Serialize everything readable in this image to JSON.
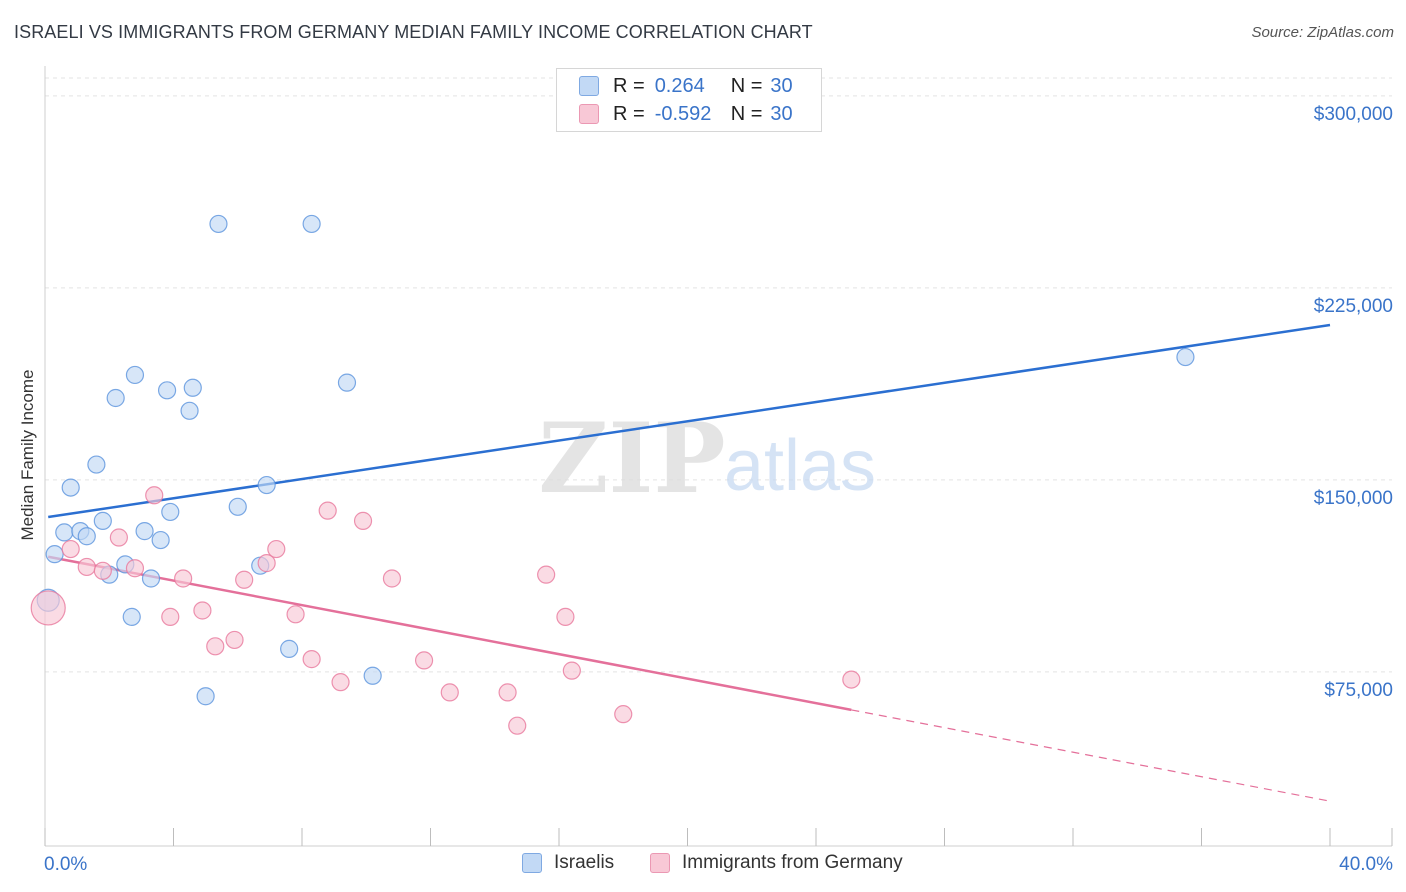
{
  "header": {
    "title": "ISRAELI VS IMMIGRANTS FROM GERMANY MEDIAN FAMILY INCOME CORRELATION CHART",
    "source": "Source: ZipAtlas.com"
  },
  "watermark": {
    "zip": "ZIP",
    "atlas": "atlas"
  },
  "legend": {
    "rows": [
      {
        "r_label": "R =",
        "r_value": "0.264",
        "n_label": "N =",
        "n_value": "30",
        "color": "#a8c8f0"
      },
      {
        "r_label": "R =",
        "r_value": "-0.592",
        "n_label": "N =",
        "n_value": "30",
        "color": "#f6b8cb"
      }
    ]
  },
  "bottom_legend": [
    {
      "label": "Israelis",
      "color": "#a8c8f0"
    },
    {
      "label": "Immigrants from Germany",
      "color": "#f6b8cb"
    }
  ],
  "chart_data": {
    "type": "scatter",
    "title": "ISRAELI VS IMMIGRANTS FROM GERMANY MEDIAN FAMILY INCOME CORRELATION CHART",
    "xlabel": "",
    "ylabel": "Median Family Income",
    "xlim": [
      0,
      40
    ],
    "ylim": [
      7000,
      307000
    ],
    "x_tick_labels": [
      "0.0%",
      "40.0%"
    ],
    "y_ticks": [
      75000,
      150000,
      225000,
      300000
    ],
    "y_tick_labels": [
      "$75,000",
      "$150,000",
      "$225,000",
      "$300,000"
    ],
    "grid": true,
    "series": [
      {
        "name": "Israelis",
        "color": "#5b93dd",
        "fill": "#c2d9f5",
        "points": [
          [
            0.1,
            103000
          ],
          [
            0.3,
            121000
          ],
          [
            0.6,
            129500
          ],
          [
            0.8,
            147000
          ],
          [
            1.1,
            130000
          ],
          [
            1.3,
            128000
          ],
          [
            1.6,
            156000
          ],
          [
            1.8,
            134000
          ],
          [
            2.0,
            113000
          ],
          [
            2.2,
            182000
          ],
          [
            2.5,
            117000
          ],
          [
            2.7,
            96500
          ],
          [
            2.8,
            191000
          ],
          [
            3.1,
            130000
          ],
          [
            3.3,
            111500
          ],
          [
            3.6,
            126500
          ],
          [
            3.8,
            185000
          ],
          [
            3.9,
            137500
          ],
          [
            4.5,
            177000
          ],
          [
            4.6,
            186000
          ],
          [
            5.0,
            65500
          ],
          [
            5.4,
            250000
          ],
          [
            6.0,
            139500
          ],
          [
            6.7,
            116500
          ],
          [
            6.9,
            148000
          ],
          [
            7.6,
            84000
          ],
          [
            8.3,
            250000
          ],
          [
            9.4,
            188000
          ],
          [
            10.2,
            73500
          ],
          [
            35.5,
            198000
          ]
        ],
        "trend": {
          "x0": 0.1,
          "y0": 135500,
          "x1": 40,
          "y1": 210500,
          "dashed_from": null
        }
      },
      {
        "name": "Immigrants from Germany",
        "color": "#e8789c",
        "fill": "#f8c8d6",
        "points": [
          [
            0.1,
            100000
          ],
          [
            0.8,
            123000
          ],
          [
            1.3,
            116000
          ],
          [
            1.8,
            114500
          ],
          [
            2.3,
            127500
          ],
          [
            2.8,
            115500
          ],
          [
            3.4,
            144000
          ],
          [
            3.9,
            96500
          ],
          [
            4.3,
            111500
          ],
          [
            4.9,
            99000
          ],
          [
            5.3,
            85000
          ],
          [
            5.9,
            87500
          ],
          [
            6.2,
            111000
          ],
          [
            6.9,
            117500
          ],
          [
            7.2,
            123000
          ],
          [
            7.8,
            97500
          ],
          [
            8.3,
            80000
          ],
          [
            8.8,
            138000
          ],
          [
            9.2,
            71000
          ],
          [
            9.9,
            134000
          ],
          [
            10.8,
            111500
          ],
          [
            11.8,
            79500
          ],
          [
            12.6,
            67000
          ],
          [
            14.4,
            67000
          ],
          [
            14.7,
            54000
          ],
          [
            15.6,
            113000
          ],
          [
            16.2,
            96500
          ],
          [
            16.4,
            75500
          ],
          [
            18.0,
            58500
          ],
          [
            25.1,
            72000
          ]
        ],
        "trend": {
          "x0": 0.1,
          "y0": 120000,
          "x1": 40,
          "y1": 24500,
          "dashed_from": 25.1
        }
      }
    ]
  }
}
